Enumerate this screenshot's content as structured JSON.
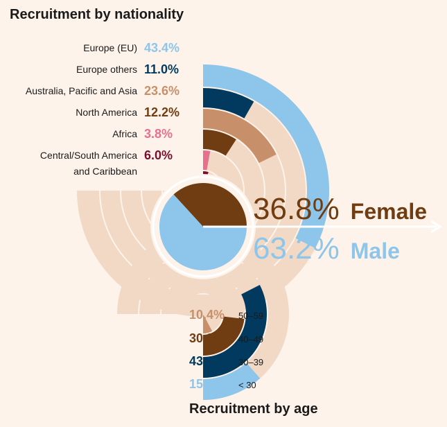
{
  "nationality": {
    "title": "Recruitment by nationality",
    "items": [
      {
        "label": "Europe (EU)",
        "value": "43.4%",
        "pct": 43.4,
        "color": "#8ec5ea"
      },
      {
        "label": "Europe others",
        "value": "11.0%",
        "pct": 11.0,
        "color": "#013a5e"
      },
      {
        "label": "Australia, Pacific and Asia",
        "value": "23.6%",
        "pct": 23.6,
        "color": "#c8906a"
      },
      {
        "label": "North America",
        "value": "12.2%",
        "pct": 12.2,
        "color": "#703d12"
      },
      {
        "label": "Africa",
        "value": "3.8%",
        "pct": 3.8,
        "color": "#e6718f"
      },
      {
        "label": "Central/South America",
        "label2": "and Caribbean",
        "value": "6.0%",
        "pct": 6.0,
        "color": "#7a0f2c"
      }
    ]
  },
  "age": {
    "title": "Recruitment by age",
    "items": [
      {
        "label": "50–59",
        "value": "10.4%",
        "pct": 10.4,
        "color": "#c8906a"
      },
      {
        "label": "40–49",
        "value": "30.8%",
        "pct": 30.8,
        "color": "#703d12"
      },
      {
        "label": "30–39",
        "value": "43.4%",
        "pct": 43.4,
        "color": "#013a5e"
      },
      {
        "label": "< 30",
        "value": "15.4%",
        "pct": 15.4,
        "color": "#8ec5ea"
      }
    ]
  },
  "gender": {
    "items": [
      {
        "label": "Female",
        "value": "36.8%",
        "pct": 36.8,
        "color": "#703d12"
      },
      {
        "label": "Male",
        "value": "63.2%",
        "pct": 63.2,
        "color": "#8ec5ea"
      }
    ]
  },
  "chart_data": [
    {
      "type": "radial-bar",
      "title": "Recruitment by nationality",
      "categories": [
        "Europe (EU)",
        "Europe others",
        "Australia, Pacific and Asia",
        "North America",
        "Africa",
        "Central/South America and Caribbean"
      ],
      "values": [
        43.4,
        11.0,
        23.6,
        12.2,
        3.8,
        6.0
      ]
    },
    {
      "type": "radial-bar",
      "title": "Recruitment by age",
      "categories": [
        "50–59",
        "40–49",
        "30–39",
        "< 30"
      ],
      "values": [
        10.4,
        30.8,
        43.4,
        15.4
      ]
    },
    {
      "type": "pie",
      "categories": [
        "Female",
        "Male"
      ],
      "values": [
        36.8,
        63.2
      ]
    }
  ],
  "colors": {
    "background": "#fdf3ea",
    "track": "#f1d9c5",
    "arrow": "#ffffff"
  }
}
